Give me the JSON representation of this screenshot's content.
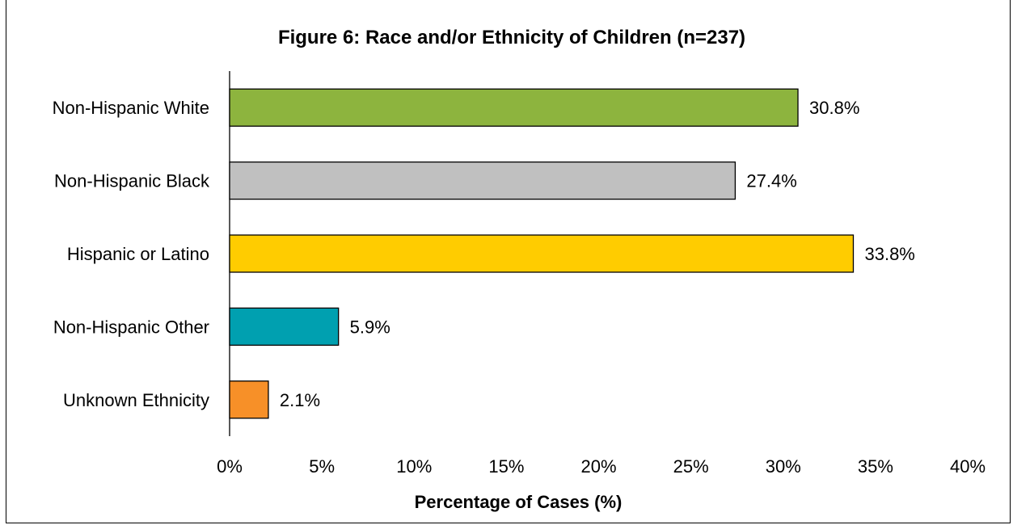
{
  "chart_data": {
    "type": "bar",
    "orientation": "horizontal",
    "title": "Figure 6: Race and/or Ethnicity of Children (n=237)",
    "xlabel": "Percentage of Cases (%)",
    "ylabel": "",
    "xlim": [
      0,
      40
    ],
    "ticks": [
      "0%",
      "5%",
      "10%",
      "15%",
      "20%",
      "25%",
      "30%",
      "35%",
      "40%"
    ],
    "grid": false,
    "legend": "none",
    "categories": [
      "Non-Hispanic White",
      "Non-Hispanic Black",
      "Hispanic or Latino",
      "Non-Hispanic Other",
      "Unknown Ethnicity"
    ],
    "values": [
      30.8,
      27.4,
      33.8,
      5.9,
      2.1
    ],
    "data_labels": [
      "30.8%",
      "27.4%",
      "33.8%",
      "5.9%",
      "2.1%"
    ],
    "colors": [
      "#8db43e",
      "#c0c0c0",
      "#ffcc00",
      "#00a0b0",
      "#f79028"
    ]
  }
}
